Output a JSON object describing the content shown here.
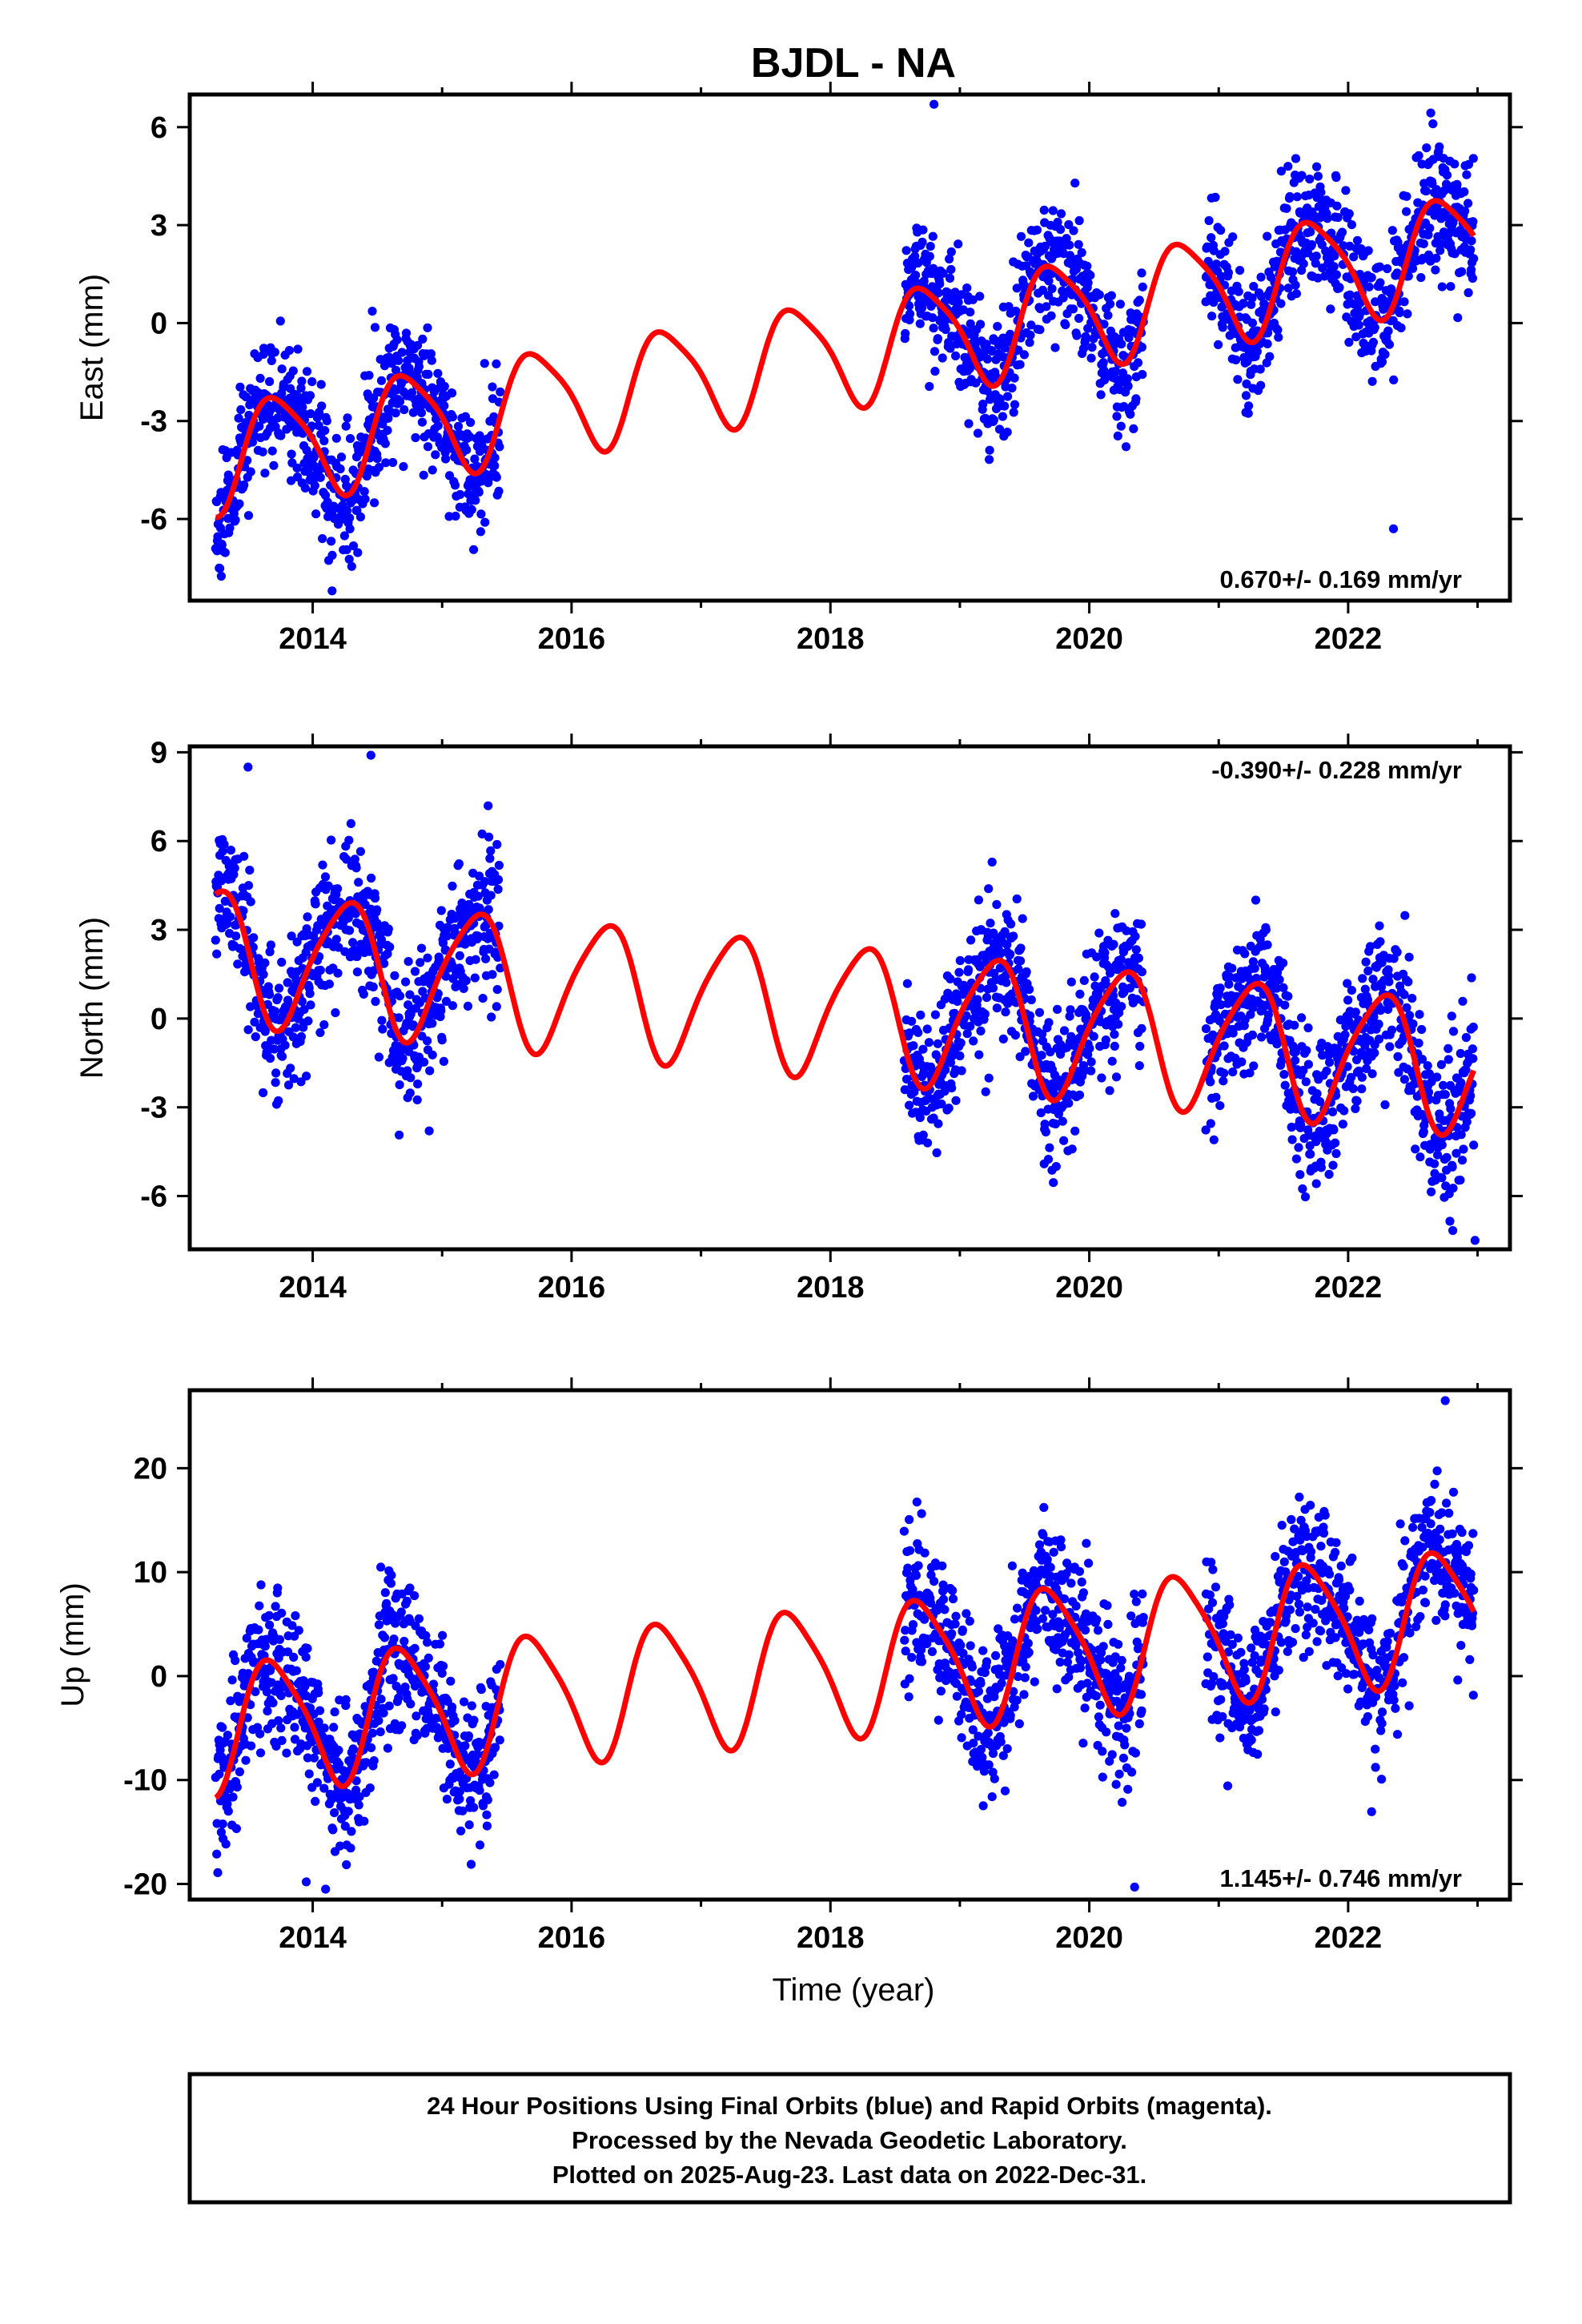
{
  "title": "BJDL - NA",
  "xlabel": "Time (year)",
  "x_ticks": [
    "2014",
    "2016",
    "2018",
    "2020",
    "2022"
  ],
  "colors": {
    "final_orbits": "#0000ff",
    "model_fit": "#ff0000",
    "frame": "#000000"
  },
  "footer": {
    "line1": "24 Hour Positions Using Final Orbits (blue) and Rapid Orbits (magenta).",
    "line2": "Processed by the Nevada Geodetic Laboratory.",
    "line3": "Plotted on 2025-Aug-23. Last data on 2022-Dec-31."
  },
  "chart_data": [
    {
      "type": "scatter",
      "ylabel": "East (mm)",
      "rate_label": "0.670+/- 0.169 mm/yr",
      "rate_position": "bottom-right",
      "xlim": [
        2013.05,
        2023.25
      ],
      "ylim": [
        -8.5,
        7.0
      ],
      "yticks": [
        "6",
        "3",
        "0",
        "-3",
        "-6"
      ],
      "yticks_values": [
        6,
        3,
        0,
        -3,
        -6
      ],
      "data_segments": [
        [
          2013.25,
          2015.45
        ],
        [
          2018.57,
          2020.42
        ],
        [
          2020.9,
          2022.97
        ]
      ],
      "fit": {
        "offset": -4.1,
        "rate": 0.67,
        "t0": 2013.25,
        "seasonal": [
          [
            1,
            -0.2,
            -1.6
          ],
          [
            2,
            0.25,
            0.2
          ]
        ]
      },
      "noise_sd": 1.0,
      "seed": 11,
      "outliers": [
        [
          2018.8,
          6.7
        ],
        [
          2022.35,
          -6.3
        ],
        [
          2014.15,
          -8.2
        ]
      ]
    },
    {
      "type": "scatter",
      "ylabel": "North (mm)",
      "rate_label": "-0.390+/- 0.228 mm/yr",
      "rate_position": "top-right",
      "xlim": [
        2013.05,
        2023.25
      ],
      "ylim": [
        -7.8,
        9.2
      ],
      "yticks": [
        "9",
        "6",
        "3",
        "0",
        "-3",
        "-6"
      ],
      "yticks_values": [
        9,
        6,
        3,
        0,
        -3,
        -6
      ],
      "data_segments": [
        [
          2013.25,
          2015.45
        ],
        [
          2018.57,
          2020.42
        ],
        [
          2020.9,
          2022.97
        ]
      ],
      "fit": {
        "offset": 2.2,
        "rate": -0.39,
        "t0": 2013.25,
        "seasonal": [
          [
            1,
            -0.05,
            2.2
          ],
          [
            2,
            0.2,
            -0.3
          ]
        ]
      },
      "noise_sd": 1.2,
      "seed": 23,
      "outliers": [
        [
          2014.45,
          8.9
        ],
        [
          2013.5,
          8.5
        ],
        [
          2022.98,
          -7.5
        ],
        [
          2014.9,
          -3.8
        ]
      ]
    },
    {
      "type": "scatter",
      "ylabel": "Up (mm)",
      "rate_label": "1.145+/- 0.746 mm/yr",
      "rate_position": "bottom-right",
      "xlim": [
        2013.05,
        2023.25
      ],
      "ylim": [
        -21.5,
        27.5
      ],
      "yticks": [
        "20",
        "10",
        "0",
        "-10",
        "-20"
      ],
      "yticks_values": [
        20,
        10,
        0,
        -10,
        -20
      ],
      "data_segments": [
        [
          2013.25,
          2015.45
        ],
        [
          2018.57,
          2020.42
        ],
        [
          2020.9,
          2022.97
        ]
      ],
      "fit": {
        "offset": -4.9,
        "rate": 1.145,
        "t0": 2013.25,
        "seasonal": [
          [
            1,
            -1.9,
            -5.8
          ],
          [
            2,
            1.0,
            0.5
          ]
        ]
      },
      "noise_sd": 3.6,
      "seed": 37,
      "outliers": [
        [
          2022.75,
          26.5
        ],
        [
          2014.1,
          -20.5
        ],
        [
          2020.35,
          -20.3
        ],
        [
          2013.95,
          -19.8
        ]
      ]
    }
  ]
}
